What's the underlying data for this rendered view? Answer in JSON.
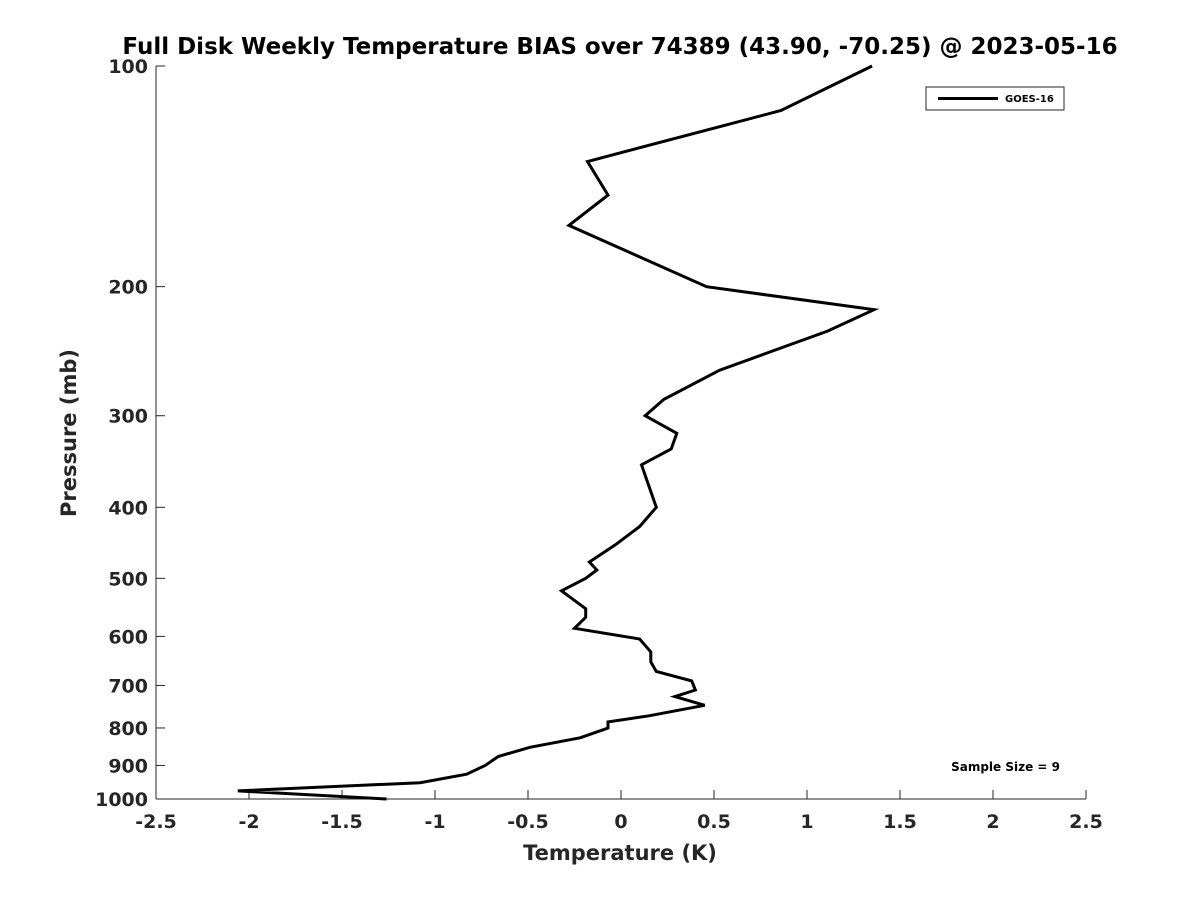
{
  "chart_data": {
    "type": "line",
    "title": "Full Disk Weekly Temperature BIAS over 74389 (43.90, -70.25) @ 2023-05-16",
    "xlabel": "Temperature (K)",
    "ylabel": "Pressure (mb)",
    "xlim": [
      -2.5,
      2.5
    ],
    "ylim": [
      100,
      1000
    ],
    "y_scale": "log",
    "y_reversed": true,
    "x_ticks": [
      "-2.5",
      "-2",
      "-1.5",
      "-1",
      "-0.5",
      "0",
      "0.5",
      "1",
      "1.5",
      "2",
      "2.5"
    ],
    "y_ticks": [
      "100",
      "200",
      "300",
      "400",
      "500",
      "600",
      "700",
      "800",
      "900",
      "1000"
    ],
    "grid": false,
    "legend_position": "top-right",
    "series": [
      {
        "name": "GOES-16",
        "color": "#000000",
        "points": [
          {
            "x": 1.35,
            "y": 100
          },
          {
            "x": 0.86,
            "y": 115
          },
          {
            "x": -0.18,
            "y": 135
          },
          {
            "x": -0.07,
            "y": 150
          },
          {
            "x": -0.28,
            "y": 165
          },
          {
            "x": 0.46,
            "y": 200
          },
          {
            "x": 1.36,
            "y": 215
          },
          {
            "x": 1.11,
            "y": 230
          },
          {
            "x": 0.53,
            "y": 260
          },
          {
            "x": 0.23,
            "y": 285
          },
          {
            "x": 0.13,
            "y": 300
          },
          {
            "x": 0.3,
            "y": 317
          },
          {
            "x": 0.27,
            "y": 333
          },
          {
            "x": 0.11,
            "y": 350
          },
          {
            "x": 0.19,
            "y": 400
          },
          {
            "x": 0.1,
            "y": 425
          },
          {
            "x": -0.03,
            "y": 450
          },
          {
            "x": -0.17,
            "y": 475
          },
          {
            "x": -0.13,
            "y": 487
          },
          {
            "x": -0.19,
            "y": 500
          },
          {
            "x": -0.32,
            "y": 520
          },
          {
            "x": -0.19,
            "y": 550
          },
          {
            "x": -0.19,
            "y": 565
          },
          {
            "x": -0.25,
            "y": 585
          },
          {
            "x": 0.1,
            "y": 605
          },
          {
            "x": 0.16,
            "y": 630
          },
          {
            "x": 0.16,
            "y": 650
          },
          {
            "x": 0.19,
            "y": 670
          },
          {
            "x": 0.38,
            "y": 690
          },
          {
            "x": 0.4,
            "y": 710
          },
          {
            "x": 0.29,
            "y": 725
          },
          {
            "x": 0.45,
            "y": 745
          },
          {
            "x": 0.15,
            "y": 770
          },
          {
            "x": -0.07,
            "y": 785
          },
          {
            "x": -0.07,
            "y": 800
          },
          {
            "x": -0.22,
            "y": 825
          },
          {
            "x": -0.49,
            "y": 850
          },
          {
            "x": -0.66,
            "y": 875
          },
          {
            "x": -0.73,
            "y": 900
          },
          {
            "x": -0.83,
            "y": 925
          },
          {
            "x": -1.08,
            "y": 950
          },
          {
            "x": -2.06,
            "y": 975
          },
          {
            "x": -1.26,
            "y": 1000
          }
        ]
      }
    ],
    "annotation": "Sample Size = 9"
  }
}
